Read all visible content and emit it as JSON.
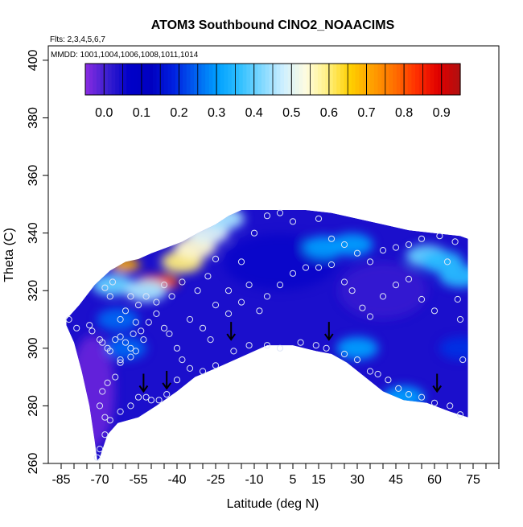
{
  "chart_data": {
    "type": "contour",
    "title": "ATOM3 Southbound ClNO2_NOAACIMS",
    "subtitle_flights": "Flts: 2,3,4,5,6,7",
    "subtitle_dates": "MMDD: 1001,1004,1006,1008,1011,1014",
    "xlabel": "Latitude (deg N)",
    "ylabel": "Theta (C)",
    "xlim": [
      -90,
      85
    ],
    "ylim": [
      260,
      405
    ],
    "x_ticks": [
      -85,
      -70,
      -55,
      -40,
      -25,
      -10,
      5,
      15,
      30,
      45,
      60,
      75
    ],
    "x_ticks_minor": [
      -85,
      -80,
      -75,
      -70,
      -65,
      -60,
      -55,
      -50,
      -45,
      -40,
      -35,
      -30,
      -25,
      -20,
      -15,
      -10,
      -5,
      0,
      5,
      10,
      15,
      20,
      25,
      30,
      35,
      40,
      45,
      50,
      55,
      60,
      65,
      70,
      75,
      80,
      85
    ],
    "y_ticks": [
      260,
      280,
      300,
      320,
      340,
      360,
      380,
      400
    ],
    "colorbar": {
      "ticks": [
        "0.0",
        "0.1",
        "0.2",
        "0.3",
        "0.4",
        "0.5",
        "0.6",
        "0.7",
        "0.8",
        "0.9"
      ],
      "range": [
        -0.05,
        0.95
      ],
      "colors": [
        "#8a2be2",
        "#3a1fd0",
        "#0000c8",
        "#0000c0",
        "#0020e0",
        "#0060f0",
        "#00a0ff",
        "#30c0ff",
        "#80d8ff",
        "#d0f0ff",
        "#fffce0",
        "#fff080",
        "#ffd000",
        "#ffa000",
        "#ff7000",
        "#ff3000",
        "#e00000",
        "#b01010"
      ]
    },
    "envelope_top": [
      [
        -83,
        310
      ],
      [
        -78,
        315
      ],
      [
        -72,
        322
      ],
      [
        -66,
        327
      ],
      [
        -60,
        330
      ],
      [
        -55,
        331
      ],
      [
        -50,
        333
      ],
      [
        -44,
        335
      ],
      [
        -38,
        337
      ],
      [
        -32,
        340
      ],
      [
        -25,
        343
      ],
      [
        -20,
        346
      ],
      [
        -15,
        348
      ],
      [
        -5,
        348
      ],
      [
        10,
        348
      ],
      [
        20,
        347
      ],
      [
        30,
        345
      ],
      [
        40,
        343
      ],
      [
        50,
        341
      ],
      [
        60,
        340
      ],
      [
        70,
        339
      ],
      [
        73,
        338
      ]
    ],
    "envelope_bottom": [
      [
        73,
        276
      ],
      [
        66,
        278
      ],
      [
        57,
        281
      ],
      [
        48,
        282
      ],
      [
        40,
        285
      ],
      [
        33,
        290
      ],
      [
        26,
        295
      ],
      [
        20,
        298
      ],
      [
        14,
        299
      ],
      [
        5,
        301
      ],
      [
        -5,
        301
      ],
      [
        -15,
        297
      ],
      [
        -20,
        295
      ],
      [
        -25,
        293
      ],
      [
        -33,
        290
      ],
      [
        -40,
        285
      ],
      [
        -48,
        280
      ],
      [
        -55,
        276
      ],
      [
        -63,
        274
      ],
      [
        -67,
        270
      ],
      [
        -70,
        262
      ],
      [
        -71,
        261
      ],
      [
        -72,
        268
      ],
      [
        -74,
        280
      ],
      [
        -77,
        292
      ],
      [
        -80,
        302
      ],
      [
        -83,
        308
      ]
    ],
    "high_regions": [
      {
        "lat": -50,
        "theta": 323,
        "value": 0.85
      },
      {
        "lat": -45,
        "theta": 323,
        "value": 0.8
      },
      {
        "lat": -60,
        "theta": 329,
        "value": 0.7
      },
      {
        "lat": -38,
        "theta": 330,
        "value": 0.6
      },
      {
        "lat": -33,
        "theta": 335,
        "value": 0.55
      },
      {
        "lat": -28,
        "theta": 340,
        "value": 0.5
      },
      {
        "lat": -22,
        "theta": 345,
        "value": 0.45
      },
      {
        "lat": -65,
        "theta": 322,
        "value": 0.4
      },
      {
        "lat": -52,
        "theta": 320,
        "value": 0.45
      },
      {
        "lat": 57,
        "theta": 332,
        "value": 0.4
      },
      {
        "lat": 63,
        "theta": 330,
        "value": 0.35
      },
      {
        "lat": 70,
        "theta": 325,
        "value": 0.35
      },
      {
        "lat": 17,
        "theta": 335,
        "value": 0.3
      },
      {
        "lat": 28,
        "theta": 336,
        "value": 0.3
      },
      {
        "lat": 48,
        "theta": 283,
        "value": 0.3
      },
      {
        "lat": 30,
        "theta": 300,
        "value": 0.3
      },
      {
        "lat": -60,
        "theta": 300,
        "value": 0.25
      },
      {
        "lat": -63,
        "theta": 310,
        "value": 0.25
      },
      {
        "lat": 70,
        "theta": 300,
        "value": 0.2
      }
    ],
    "arrows": [
      {
        "lat": -53,
        "theta": 285
      },
      {
        "lat": -44,
        "theta": 286
      },
      {
        "lat": -19,
        "theta": 303
      },
      {
        "lat": 19,
        "theta": 303
      },
      {
        "lat": 61,
        "theta": 285
      }
    ],
    "observations": [
      [
        -82,
        310
      ],
      [
        -79,
        307
      ],
      [
        -74,
        308
      ],
      [
        -73,
        306
      ],
      [
        -70,
        303
      ],
      [
        -69,
        302
      ],
      [
        -67,
        300
      ],
      [
        -66,
        299
      ],
      [
        -64,
        303
      ],
      [
        -62,
        304
      ],
      [
        -60,
        302
      ],
      [
        -58,
        300
      ],
      [
        -57,
        305
      ],
      [
        -56,
        309
      ],
      [
        -54,
        306
      ],
      [
        -53,
        303
      ],
      [
        -51,
        309
      ],
      [
        -48,
        312
      ],
      [
        -45,
        307
      ],
      [
        -43,
        305
      ],
      [
        -40,
        300
      ],
      [
        -38,
        296
      ],
      [
        -35,
        310
      ],
      [
        -30,
        307
      ],
      [
        -27,
        303
      ],
      [
        -25,
        315
      ],
      [
        -20,
        312
      ],
      [
        -15,
        316
      ],
      [
        -12,
        322
      ],
      [
        -8,
        313
      ],
      [
        -5,
        318
      ],
      [
        0,
        322
      ],
      [
        5,
        326
      ],
      [
        10,
        328
      ],
      [
        15,
        328
      ],
      [
        20,
        329
      ],
      [
        25,
        323
      ],
      [
        28,
        320
      ],
      [
        32,
        314
      ],
      [
        35,
        311
      ],
      [
        40,
        318
      ],
      [
        45,
        322
      ],
      [
        50,
        324
      ],
      [
        55,
        317
      ],
      [
        60,
        313
      ],
      [
        65,
        330
      ],
      [
        68,
        337
      ],
      [
        62,
        339
      ],
      [
        55,
        338
      ],
      [
        50,
        336
      ],
      [
        45,
        335
      ],
      [
        40,
        334
      ],
      [
        35,
        330
      ],
      [
        30,
        333
      ],
      [
        25,
        336
      ],
      [
        20,
        338
      ],
      [
        15,
        345
      ],
      [
        5,
        344
      ],
      [
        0,
        347
      ],
      [
        -5,
        346
      ],
      [
        -10,
        340
      ],
      [
        -15,
        330
      ],
      [
        -20,
        320
      ],
      [
        -25,
        331
      ],
      [
        -28,
        325
      ],
      [
        -32,
        320
      ],
      [
        -38,
        323
      ],
      [
        -42,
        318
      ],
      [
        -45,
        322
      ],
      [
        -48,
        316
      ],
      [
        -52,
        318
      ],
      [
        -55,
        315
      ],
      [
        -58,
        318
      ],
      [
        -60,
        313
      ],
      [
        -62,
        310
      ],
      [
        -65,
        323
      ],
      [
        -68,
        321
      ],
      [
        -66,
        318
      ],
      [
        -62,
        295
      ],
      [
        -64,
        290
      ],
      [
        -67,
        288
      ],
      [
        -69,
        285
      ],
      [
        -70,
        280
      ],
      [
        -68,
        276
      ],
      [
        -66,
        275
      ],
      [
        -62,
        278
      ],
      [
        -58,
        280
      ],
      [
        -55,
        283
      ],
      [
        -52,
        283
      ],
      [
        -50,
        282
      ],
      [
        -47,
        282
      ],
      [
        -44,
        284
      ],
      [
        -40,
        289
      ],
      [
        -35,
        293
      ],
      [
        -30,
        292
      ],
      [
        -25,
        294
      ],
      [
        -18,
        299
      ],
      [
        -12,
        301
      ],
      [
        -5,
        301
      ],
      [
        0,
        300
      ],
      [
        8,
        302
      ],
      [
        14,
        301
      ],
      [
        18,
        300
      ],
      [
        25,
        298
      ],
      [
        30,
        296
      ],
      [
        35,
        292
      ],
      [
        38,
        291
      ],
      [
        42,
        289
      ],
      [
        46,
        286
      ],
      [
        50,
        284
      ],
      [
        55,
        283
      ],
      [
        60,
        281
      ],
      [
        66,
        280
      ],
      [
        70,
        277
      ],
      [
        71,
        296
      ],
      [
        70,
        310
      ],
      [
        69,
        317
      ],
      [
        -70,
        265
      ],
      [
        -71,
        262
      ],
      [
        -68,
        270
      ],
      [
        -62,
        296
      ],
      [
        -58,
        297
      ],
      [
        -56,
        299
      ]
    ]
  }
}
